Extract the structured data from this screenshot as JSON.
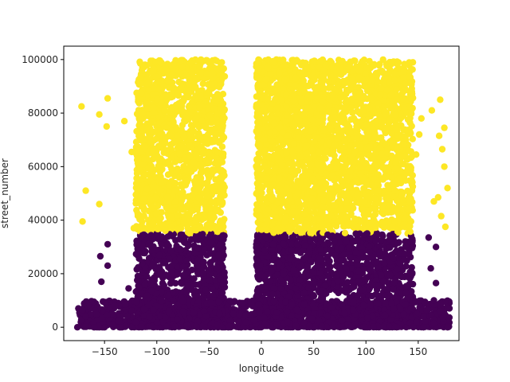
{
  "chart_data": {
    "type": "scatter",
    "title": "",
    "xlabel": "longitude",
    "ylabel": "street_number",
    "xlim": [
      -189,
      189
    ],
    "ylim": [
      -5000,
      105000
    ],
    "xticks": [
      -150,
      -100,
      -50,
      0,
      50,
      100,
      150
    ],
    "xtick_labels": [
      "−150",
      "−100",
      "−50",
      "0",
      "50",
      "100",
      "150"
    ],
    "yticks": [
      0,
      20000,
      40000,
      60000,
      80000,
      100000
    ],
    "ytick_labels": [
      "0",
      "20000",
      "40000",
      "60000",
      "80000",
      "100000"
    ],
    "grid": false,
    "legend": "none",
    "color_encoding": {
      "threshold": 35000,
      "low_color": "#440154",
      "high_color": "#fde725"
    },
    "dense_regions": [
      {
        "x": [
          -120,
          -35
        ],
        "y": [
          0,
          100000
        ]
      },
      {
        "x": [
          -5,
          60
        ],
        "y": [
          0,
          100000
        ]
      },
      {
        "x": [
          55,
          145
        ],
        "y": [
          0,
          100000
        ]
      },
      {
        "x": [
          -175,
          180
        ],
        "y": [
          0,
          10000
        ]
      }
    ],
    "sparse_points": [
      [
        -172,
        82500
      ],
      [
        -168,
        51000
      ],
      [
        -171,
        39500
      ],
      [
        -155,
        79500
      ],
      [
        -147,
        85500
      ],
      [
        -148,
        75000
      ],
      [
        -155,
        46000
      ],
      [
        -131,
        77000
      ],
      [
        -124,
        65500
      ],
      [
        -122,
        37000
      ],
      [
        -154,
        26500
      ],
      [
        -147,
        31000
      ],
      [
        -147,
        23000
      ],
      [
        -153,
        17000
      ],
      [
        -127,
        14500
      ],
      [
        -175,
        7000
      ],
      [
        -171,
        6500
      ],
      [
        -168,
        4000
      ],
      [
        -149,
        9000
      ],
      [
        -140,
        8000
      ],
      [
        -176,
        0
      ],
      [
        -160,
        0
      ],
      [
        -150,
        0
      ],
      [
        -135,
        0
      ],
      [
        148,
        64500
      ],
      [
        151,
        72000
      ],
      [
        153,
        78000
      ],
      [
        163,
        81000
      ],
      [
        171,
        85000
      ],
      [
        170,
        71500
      ],
      [
        175,
        74500
      ],
      [
        173,
        66500
      ],
      [
        175,
        60000
      ],
      [
        178,
        52000
      ],
      [
        169,
        48500
      ],
      [
        165,
        47000
      ],
      [
        172,
        41500
      ],
      [
        176,
        37500
      ],
      [
        160,
        33500
      ],
      [
        167,
        30000
      ],
      [
        162,
        22000
      ],
      [
        167,
        16500
      ],
      [
        165,
        10000
      ],
      [
        171,
        9000
      ],
      [
        158,
        6500
      ],
      [
        176,
        4500
      ],
      [
        178,
        0
      ],
      [
        165,
        1500
      ]
    ]
  }
}
